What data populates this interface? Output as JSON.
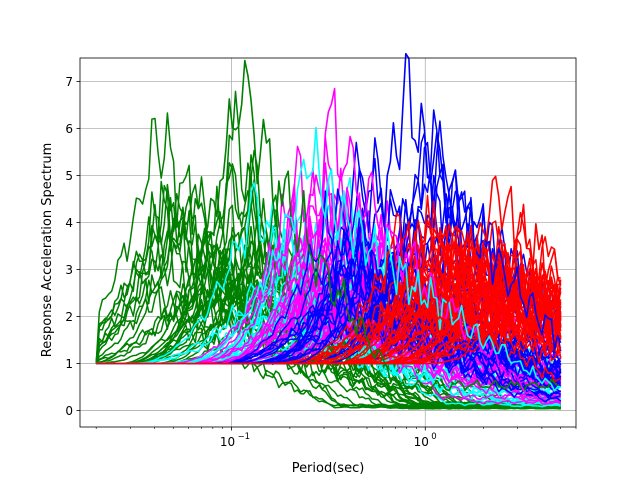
{
  "chart_data": {
    "type": "line",
    "xlabel": "Period(sec)",
    "ylabel": "Response Acceleration Spectrum",
    "xscale": "log",
    "xlim": [
      0.0165,
      6.0
    ],
    "ylim": [
      -0.35,
      7.5
    ],
    "grid": true,
    "legend": "none",
    "x_ticks": [
      {
        "value": 0.1,
        "base": "10",
        "exp": "−1"
      },
      {
        "value": 1.0,
        "base": "10",
        "exp": "0"
      }
    ],
    "y_ticks": [
      0,
      1,
      2,
      3,
      4,
      5,
      6,
      7
    ],
    "x_range": [
      0.02,
      5.0
    ],
    "series_groups": [
      {
        "color": "#008000",
        "count": 30,
        "peak_period_range": [
          0.035,
          0.16
        ],
        "peak_value_range": [
          2.5,
          7.16
        ],
        "tail_value": 0.1
      },
      {
        "color": "#00ffff",
        "count": 30,
        "peak_period_range": [
          0.13,
          0.45
        ],
        "peak_value_range": [
          2.0,
          5.45
        ],
        "tail_value": 0.25
      },
      {
        "color": "#ff00ff",
        "count": 30,
        "peak_period_range": [
          0.2,
          0.7
        ],
        "peak_value_range": [
          2.0,
          6.15
        ],
        "tail_value": 0.4
      },
      {
        "color": "#0000ff",
        "count": 30,
        "peak_period_range": [
          0.3,
          1.3
        ],
        "peak_value_range": [
          2.0,
          6.85
        ],
        "tail_value": 0.5
      },
      {
        "color": "#ff0000",
        "count": 40,
        "peak_period_range": [
          0.7,
          3.0
        ],
        "peak_value_range": [
          2.0,
          4.7
        ],
        "tail_value": 1.5
      }
    ],
    "highlight_peaks": [
      {
        "color": "#008000",
        "period": 0.115,
        "value": 7.16
      },
      {
        "color": "#0000ff",
        "period": 0.8,
        "value": 6.85
      },
      {
        "color": "#ff00ff",
        "period": 0.33,
        "value": 6.15
      },
      {
        "color": "#00ffff",
        "period": 0.25,
        "value": 5.45
      },
      {
        "color": "#ff0000",
        "period": 2.3,
        "value": 4.7
      }
    ]
  }
}
